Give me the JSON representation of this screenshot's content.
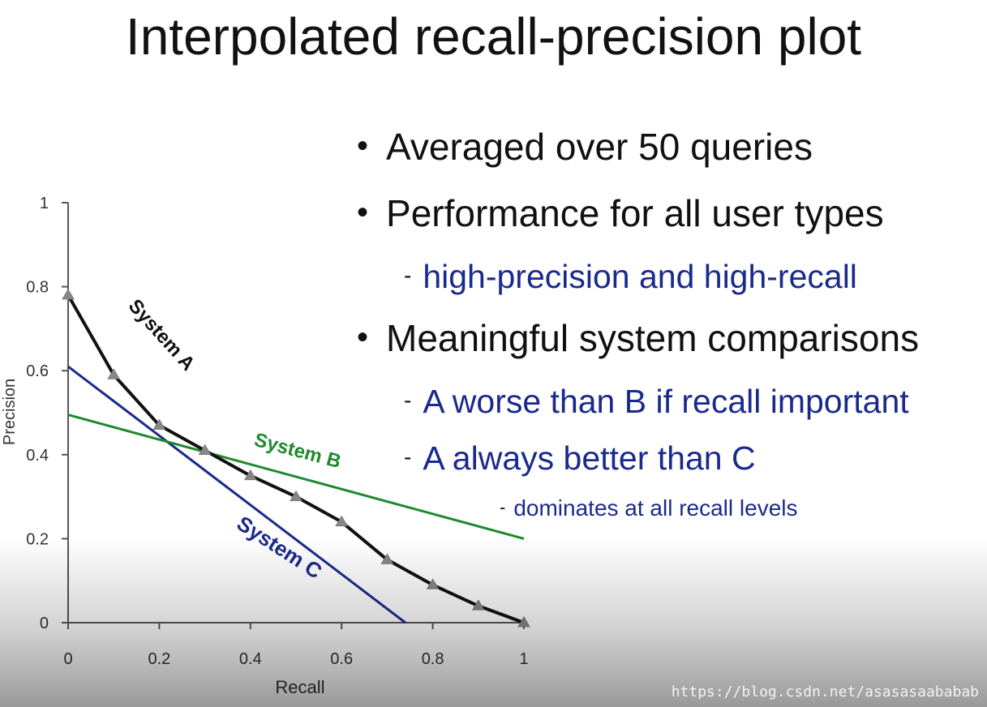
{
  "title": "Interpolated recall-precision plot",
  "bullets": [
    {
      "level": 1,
      "text": "Averaged over 50 queries"
    },
    {
      "level": 1,
      "text": "Performance for all user types"
    },
    {
      "level": 2,
      "text": "high-precision and high-recall"
    },
    {
      "level": 1,
      "text": "Meaningful system comparisons"
    },
    {
      "level": 2,
      "text": "A worse than B if recall important"
    },
    {
      "level": 2,
      "text": "A always better than C"
    },
    {
      "level": 3,
      "text": "dominates at all recall levels"
    }
  ],
  "watermark": "https://blog.csdn.net/asasasaababab",
  "chart_data": {
    "type": "line",
    "xlabel": "Recall",
    "ylabel": "Precision",
    "xlim": [
      0,
      1
    ],
    "ylim": [
      0,
      1
    ],
    "xticks": [
      "0",
      "0.2",
      "0.4",
      "0.6",
      "0.8",
      "1"
    ],
    "yticks": [
      "0",
      "0.2",
      "0.4",
      "0.6",
      "0.8",
      "1"
    ],
    "grid": false,
    "series": [
      {
        "name": "System A",
        "color": "#111111",
        "marker": "triangle",
        "x": [
          0,
          0.1,
          0.2,
          0.3,
          0.4,
          0.5,
          0.6,
          0.7,
          0.8,
          0.9,
          1.0
        ],
        "y": [
          0.78,
          0.59,
          0.47,
          0.41,
          0.35,
          0.3,
          0.24,
          0.15,
          0.09,
          0.04,
          0.0
        ]
      },
      {
        "name": "System B",
        "color": "#1e8a2e",
        "marker": "none",
        "x": [
          0,
          1.0
        ],
        "y": [
          0.495,
          0.2
        ]
      },
      {
        "name": "System C",
        "color": "#1a2a8c",
        "marker": "none",
        "x": [
          0,
          0.74
        ],
        "y": [
          0.61,
          0.0
        ]
      }
    ]
  }
}
